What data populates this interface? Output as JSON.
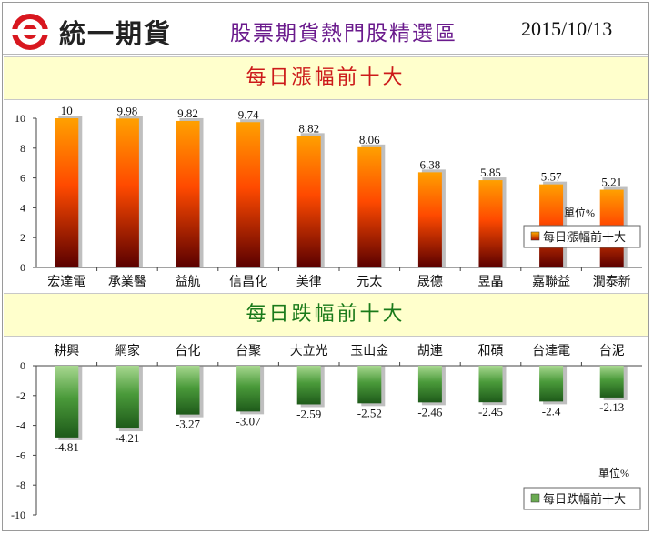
{
  "header": {
    "brand": "統一期貨",
    "title": "股票期貨熱門股精選區",
    "date": "2015/10/13"
  },
  "colors": {
    "gain_bar": "#ff6a00",
    "loss_bar": "#3c8a2e",
    "title_gain": "#cc1a1a",
    "title_loss": "#1a7a1a",
    "band_bg": "#ffffcc"
  },
  "chart_data": [
    {
      "type": "bar",
      "title": "每日漲幅前十大",
      "categories": [
        "宏達電",
        "承業醫",
        "益航",
        "信昌化",
        "美律",
        "元太",
        "晟德",
        "昱晶",
        "嘉聯益",
        "潤泰新"
      ],
      "values": [
        10,
        9.98,
        9.82,
        9.74,
        8.82,
        8.06,
        6.38,
        5.85,
        5.57,
        5.21
      ],
      "value_labels": [
        "10",
        "9.98",
        "9.82",
        "9.74",
        "8.82",
        "8.06",
        "6.38",
        "5.85",
        "5.57",
        "5.21"
      ],
      "ylim": [
        0,
        10
      ],
      "yticks": [
        "0",
        "2",
        "4",
        "6",
        "8",
        "10"
      ],
      "unit": "單位%",
      "legend": {
        "label": "每日漲幅前十大",
        "position": "right"
      }
    },
    {
      "type": "bar",
      "title": "每日跌幅前十大",
      "categories": [
        "耕興",
        "網家",
        "台化",
        "台聚",
        "大立光",
        "玉山金",
        "胡連",
        "和碩",
        "台達電",
        "台泥"
      ],
      "values": [
        -4.81,
        -4.21,
        -3.27,
        -3.07,
        -2.59,
        -2.52,
        -2.46,
        -2.45,
        -2.4,
        -2.13
      ],
      "value_labels": [
        "-4.81",
        "-4.21",
        "-3.27",
        "-3.07",
        "-2.59",
        "-2.52",
        "-2.46",
        "-2.45",
        "-2.4",
        "-2.13"
      ],
      "ylim": [
        -10,
        0
      ],
      "yticks": [
        "0",
        "-2",
        "-4",
        "-6",
        "-8",
        "-10"
      ],
      "unit": "單位%",
      "legend": {
        "label": "每日跌幅前十大",
        "position": "bottom-right"
      }
    }
  ]
}
